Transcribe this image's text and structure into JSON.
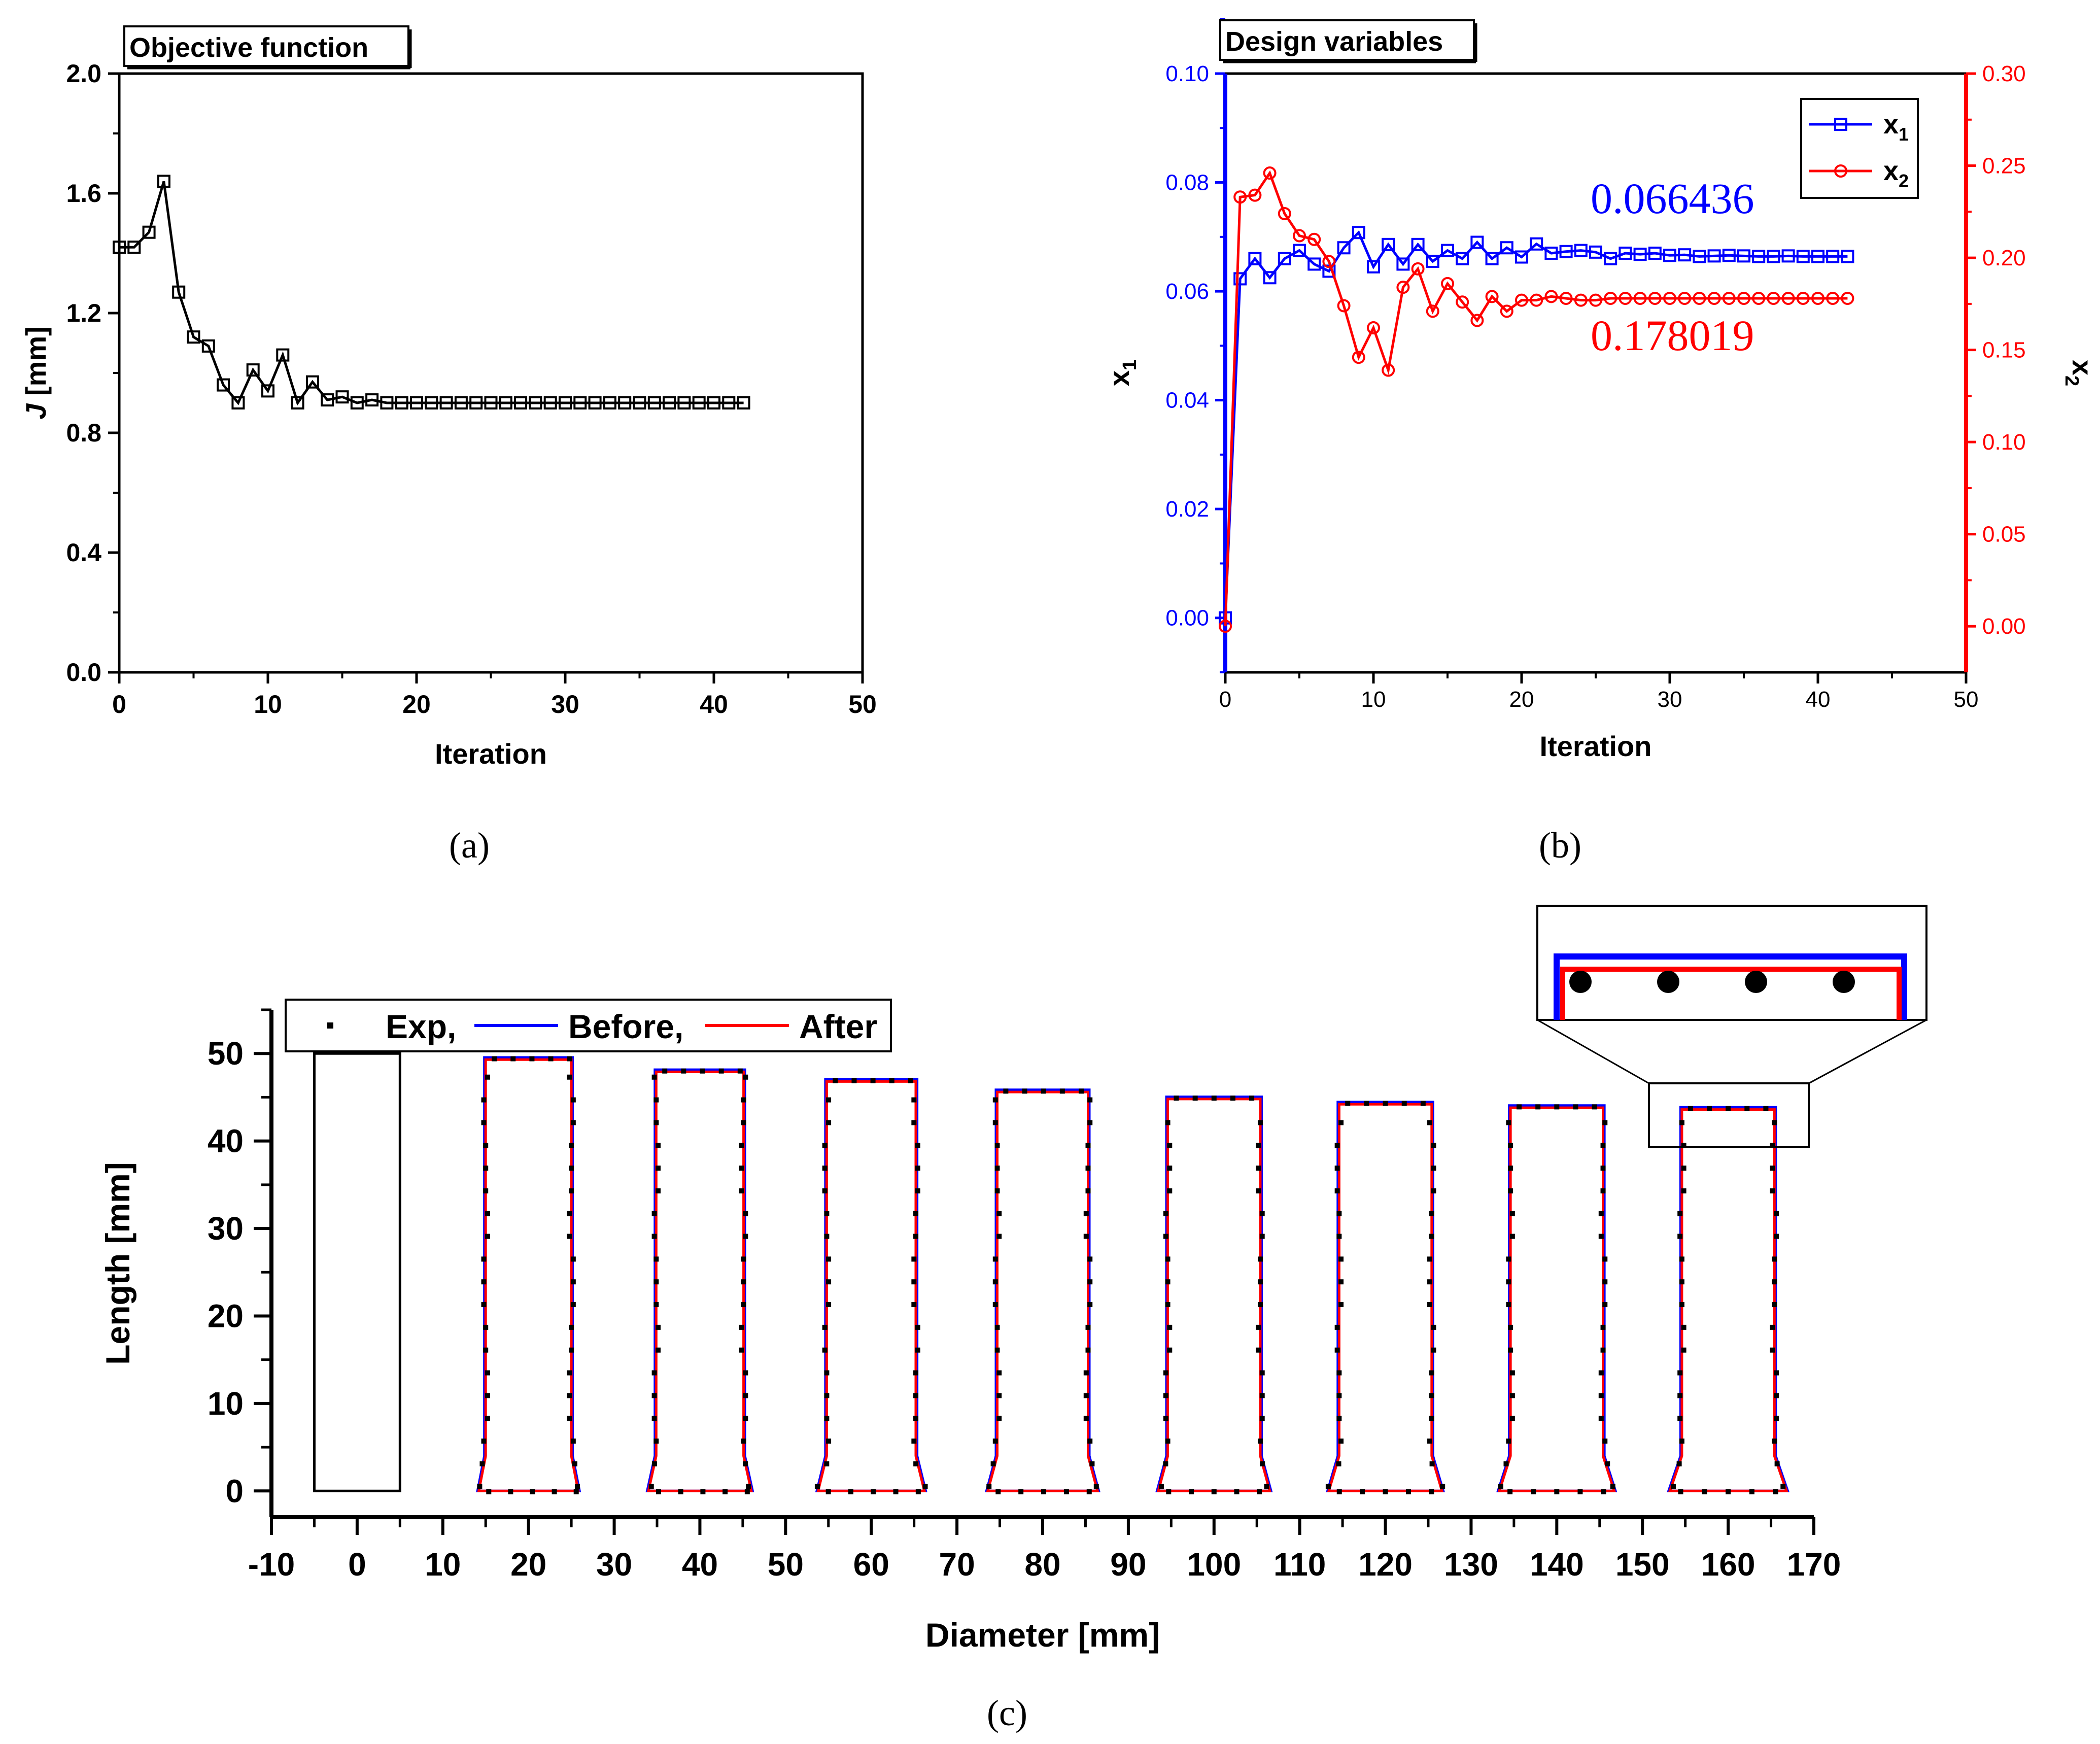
{
  "captions": {
    "a": "(a)",
    "b": "(b)",
    "c": "(c)"
  },
  "chart_data": [
    {
      "id": "a",
      "type": "line",
      "title": "Objective function",
      "xlabel": "Iteration",
      "ylabel_italic": "J",
      "ylabel_rest": " [mm]",
      "xlim": [
        0,
        50
      ],
      "ylim": [
        0,
        2.0
      ],
      "xticks": [
        "0",
        "10",
        "20",
        "30",
        "40",
        "50"
      ],
      "yticks": [
        "0.0",
        "0.4",
        "0.8",
        "1.2",
        "1.6",
        "2.0"
      ],
      "marker": "square",
      "color": "#000000",
      "x": [
        0,
        1,
        2,
        3,
        4,
        5,
        6,
        7,
        8,
        9,
        10,
        11,
        12,
        13,
        14,
        15,
        16,
        17,
        18,
        19,
        20,
        21,
        22,
        23,
        24,
        25,
        26,
        27,
        28,
        29,
        30,
        31,
        32,
        33,
        34,
        35,
        36,
        37,
        38,
        39,
        40,
        41,
        42
      ],
      "values": [
        1.42,
        1.42,
        1.47,
        1.64,
        1.27,
        1.12,
        1.09,
        0.96,
        0.9,
        1.01,
        0.94,
        1.06,
        0.9,
        0.97,
        0.91,
        0.92,
        0.9,
        0.91,
        0.9,
        0.9,
        0.9,
        0.9,
        0.9,
        0.9,
        0.9,
        0.9,
        0.9,
        0.9,
        0.9,
        0.9,
        0.9,
        0.9,
        0.9,
        0.9,
        0.9,
        0.9,
        0.9,
        0.9,
        0.9,
        0.9,
        0.9,
        0.9,
        0.9
      ]
    },
    {
      "id": "b",
      "type": "line",
      "title": "Design variables",
      "xlabel": "Iteration",
      "xlim": [
        0,
        50
      ],
      "xticks": [
        "0",
        "10",
        "20",
        "30",
        "40",
        "50"
      ],
      "y1": {
        "label": "x",
        "sub": "1",
        "lim": [
          -0.01,
          0.1
        ],
        "ticks": [
          "0.00",
          "0.02",
          "0.04",
          "0.06",
          "0.08",
          "0.10"
        ],
        "color": "#0000ff"
      },
      "y2": {
        "label": "x",
        "sub": "2",
        "lim": [
          -0.025,
          0.3
        ],
        "ticks": [
          "0.00",
          "0.05",
          "0.10",
          "0.15",
          "0.20",
          "0.25",
          "0.30"
        ],
        "color": "#ff0000"
      },
      "legend": {
        "position": "top-right",
        "entries": [
          {
            "name": "x",
            "sub": "1"
          },
          {
            "name": "x",
            "sub": "2"
          }
        ]
      },
      "annotations": [
        {
          "text": "0.066436",
          "color": "#0000ff"
        },
        {
          "text": "0.178019",
          "color": "#ff0000"
        }
      ],
      "series": [
        {
          "name": "x1",
          "axis": "y1",
          "marker": "square",
          "color": "#0000ff",
          "x": [
            0,
            1,
            2,
            3,
            4,
            5,
            6,
            7,
            8,
            9,
            10,
            11,
            12,
            13,
            14,
            15,
            16,
            17,
            18,
            19,
            20,
            21,
            22,
            23,
            24,
            25,
            26,
            27,
            28,
            29,
            30,
            31,
            32,
            33,
            34,
            35,
            36,
            37,
            38,
            39,
            40,
            41,
            42
          ],
          "values": [
            0.0,
            0.0623,
            0.066,
            0.0625,
            0.066,
            0.0675,
            0.065,
            0.0637,
            0.068,
            0.0708,
            0.0645,
            0.0686,
            0.065,
            0.0686,
            0.0655,
            0.0675,
            0.066,
            0.069,
            0.066,
            0.068,
            0.0663,
            0.0687,
            0.067,
            0.0673,
            0.0675,
            0.0672,
            0.066,
            0.067,
            0.0668,
            0.067,
            0.0666,
            0.0667,
            0.0664,
            0.0665,
            0.0666,
            0.0665,
            0.0664,
            0.0664,
            0.0665,
            0.0664,
            0.0664,
            0.0664,
            0.0664
          ]
        },
        {
          "name": "x2",
          "axis": "y2",
          "marker": "circle",
          "color": "#ff0000",
          "x": [
            0,
            1,
            2,
            3,
            4,
            5,
            6,
            7,
            8,
            9,
            10,
            11,
            12,
            13,
            14,
            15,
            16,
            17,
            18,
            19,
            20,
            21,
            22,
            23,
            24,
            25,
            26,
            27,
            28,
            29,
            30,
            31,
            32,
            33,
            34,
            35,
            36,
            37,
            38,
            39,
            40,
            41,
            42
          ],
          "values": [
            0.0,
            0.233,
            0.234,
            0.246,
            0.224,
            0.212,
            0.21,
            0.198,
            0.174,
            0.146,
            0.162,
            0.139,
            0.184,
            0.194,
            0.171,
            0.186,
            0.176,
            0.166,
            0.179,
            0.171,
            0.177,
            0.177,
            0.179,
            0.178,
            0.177,
            0.177,
            0.178,
            0.178,
            0.178,
            0.178,
            0.178,
            0.178,
            0.178,
            0.178,
            0.178,
            0.178,
            0.178,
            0.178,
            0.178,
            0.178,
            0.178,
            0.178,
            0.178
          ]
        }
      ]
    },
    {
      "id": "c",
      "type": "line",
      "xlabel": "Diameter [mm]",
      "ylabel": "Length [mm]",
      "xlim": [
        -10,
        170
      ],
      "ylim": [
        -3,
        55
      ],
      "xticks": [
        "-10",
        "0",
        "10",
        "20",
        "30",
        "40",
        "50",
        "60",
        "70",
        "80",
        "90",
        "100",
        "110",
        "120",
        "130",
        "140",
        "150",
        "160",
        "170"
      ],
      "yticks": [
        "0",
        "10",
        "20",
        "30",
        "40",
        "50"
      ],
      "legend": {
        "position": "top-left",
        "entries": [
          "Exp,",
          "Before,",
          "After"
        ],
        "colors": [
          "#000000",
          "#0000ff",
          "#ff0000"
        ]
      },
      "initial_specimen": {
        "center": 0,
        "diameter": 10,
        "length": 50
      },
      "specimens": [
        {
          "center": 20,
          "length": 49.3,
          "top_width": 10,
          "foot_width": 11.6
        },
        {
          "center": 40,
          "length": 47.9,
          "top_width": 10.2,
          "foot_width": 12.0
        },
        {
          "center": 60,
          "length": 46.8,
          "top_width": 10.4,
          "foot_width": 12.4
        },
        {
          "center": 80,
          "length": 45.6,
          "top_width": 10.6,
          "foot_width": 12.8
        },
        {
          "center": 100,
          "length": 44.8,
          "top_width": 10.8,
          "foot_width": 13.0
        },
        {
          "center": 120,
          "length": 44.2,
          "top_width": 10.8,
          "foot_width": 13.2
        },
        {
          "center": 140,
          "length": 43.8,
          "top_width": 10.8,
          "foot_width": 13.4
        },
        {
          "center": 160,
          "length": 43.6,
          "top_width": 10.8,
          "foot_width": 13.6
        }
      ],
      "inset": {
        "zoom_of": "top of specimen at 160 mm",
        "marker_count": 4
      }
    }
  ]
}
